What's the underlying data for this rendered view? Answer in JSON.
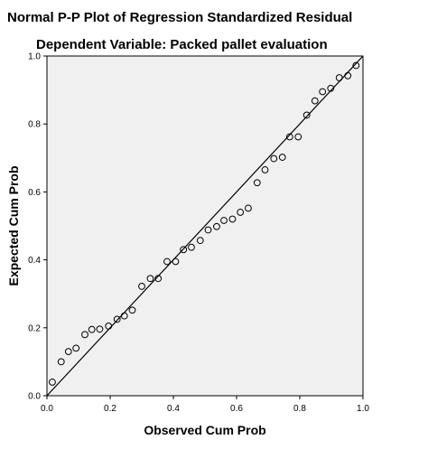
{
  "chart_data": {
    "type": "scatter",
    "title": "Normal P-P Plot of Regression Standardized Residual",
    "subtitle": "Dependent Variable: Packed pallet evaluation",
    "xlabel": "Observed Cum Prob",
    "ylabel": "Expected Cum Prob",
    "xlim": [
      0.0,
      1.0
    ],
    "ylim": [
      0.0,
      1.0
    ],
    "xticks": [
      "0.0",
      "0.2",
      "0.4",
      "0.6",
      "0.8",
      "1.0"
    ],
    "yticks": [
      "0.0",
      "0.2",
      "0.4",
      "0.6",
      "0.8",
      "1.0"
    ],
    "grid": false,
    "plot_background": "#f0f0f0",
    "marker": "open-circle",
    "reference_line": [
      [
        0.0,
        0.0
      ],
      [
        1.0,
        1.0
      ]
    ],
    "points": [
      [
        0.017,
        0.04
      ],
      [
        0.045,
        0.1
      ],
      [
        0.068,
        0.13
      ],
      [
        0.092,
        0.14
      ],
      [
        0.12,
        0.18
      ],
      [
        0.142,
        0.195
      ],
      [
        0.167,
        0.196
      ],
      [
        0.195,
        0.205
      ],
      [
        0.222,
        0.225
      ],
      [
        0.245,
        0.235
      ],
      [
        0.27,
        0.252
      ],
      [
        0.3,
        0.322
      ],
      [
        0.327,
        0.345
      ],
      [
        0.352,
        0.345
      ],
      [
        0.38,
        0.395
      ],
      [
        0.407,
        0.395
      ],
      [
        0.432,
        0.43
      ],
      [
        0.457,
        0.437
      ],
      [
        0.485,
        0.457
      ],
      [
        0.51,
        0.488
      ],
      [
        0.537,
        0.498
      ],
      [
        0.56,
        0.516
      ],
      [
        0.587,
        0.52
      ],
      [
        0.612,
        0.54
      ],
      [
        0.637,
        0.552
      ],
      [
        0.665,
        0.627
      ],
      [
        0.69,
        0.665
      ],
      [
        0.718,
        0.698
      ],
      [
        0.745,
        0.702
      ],
      [
        0.768,
        0.762
      ],
      [
        0.795,
        0.762
      ],
      [
        0.822,
        0.826
      ],
      [
        0.848,
        0.868
      ],
      [
        0.872,
        0.895
      ],
      [
        0.898,
        0.905
      ],
      [
        0.925,
        0.936
      ],
      [
        0.952,
        0.942
      ],
      [
        0.978,
        0.972
      ]
    ]
  }
}
